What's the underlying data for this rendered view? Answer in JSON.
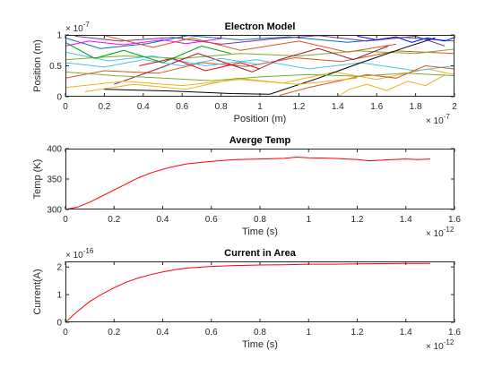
{
  "figure": {
    "background": "#ffffff"
  },
  "chart_data": [
    {
      "type": "line",
      "title": "Electron Model",
      "xlabel": "Position (m)",
      "ylabel": "Position (m)",
      "x_exponent": "× 10",
      "x_exponent_power": "-7",
      "y_exponent": "× 10",
      "y_exponent_power": "-7",
      "xlim": [
        0,
        2e-07
      ],
      "ylim": [
        0,
        1e-07
      ],
      "x_ticks": [
        "0",
        "0.2",
        "0.4",
        "0.6",
        "0.8",
        "1",
        "1.2",
        "1.4",
        "1.6",
        "1.8",
        "2"
      ],
      "y_ticks": [
        "0",
        "0.5",
        "1"
      ],
      "grid": false,
      "series": [
        {
          "color": "#0072bd",
          "points": [
            [
              0.0,
              9.5e-08
            ],
            [
              1.8e-08,
              7.8e-08
            ],
            [
              4.2e-08,
              8.6e-08
            ],
            [
              6.3e-08,
              9.9e-08
            ],
            [
              9e-08,
              9.2e-08
            ],
            [
              1.15e-07,
              9.7e-08
            ],
            [
              1.45e-07,
              8.8e-08
            ],
            [
              1.74e-07,
              9.6e-08
            ],
            [
              2e-07,
              9e-08
            ]
          ]
        },
        {
          "color": "#d95319",
          "points": [
            [
              0.0,
              3e-08
            ],
            [
              2e-08,
              4.2e-08
            ],
            [
              4.8e-08,
              3.8e-08
            ],
            [
              7e-08,
              5.5e-08
            ],
            [
              9.3e-08,
              4.9e-08
            ],
            [
              1.18e-07,
              6.3e-08
            ],
            [
              1.42e-07,
              5.7e-08
            ],
            [
              1.7e-07,
              7.4e-08
            ],
            [
              2e-07,
              7e-08
            ]
          ]
        },
        {
          "color": "#edb120",
          "points": [
            [
              1e-08,
              8e-09
            ],
            [
              3.5e-08,
              2e-08
            ],
            [
              6.2e-08,
              1.2e-08
            ],
            [
              8.8e-08,
              3e-08
            ],
            [
              1.12e-07,
              2.2e-08
            ],
            [
              1.38e-07,
              4e-08
            ],
            [
              1.6e-07,
              2.8e-08
            ],
            [
              1.86e-07,
              4.5e-08
            ],
            [
              2e-07,
              3.6e-08
            ]
          ]
        },
        {
          "color": "#7e2f8e",
          "points": [
            [
              5e-09,
              9.8e-08
            ],
            [
              2.8e-08,
              9e-08
            ],
            [
              5.5e-08,
              9.6e-08
            ],
            [
              8e-08,
              8.5e-08
            ],
            [
              1.05e-07,
              9.3e-08
            ],
            [
              1.3e-07,
              9.9e-08
            ],
            [
              1.55e-07,
              9e-08
            ],
            [
              1.8e-07,
              9.8e-08
            ],
            [
              1.95e-07,
              8.2e-08
            ]
          ]
        },
        {
          "color": "#77ac30",
          "points": [
            [
              0.0,
              6e-08
            ],
            [
              3e-08,
              6.6e-08
            ],
            [
              6e-08,
              6.2e-08
            ],
            [
              9e-08,
              7e-08
            ],
            [
              1.2e-07,
              6.6e-08
            ],
            [
              1.5e-07,
              7.4e-08
            ],
            [
              1.8e-07,
              7e-08
            ],
            [
              2e-07,
              7.7e-08
            ]
          ]
        },
        {
          "color": "#4dbeee",
          "points": [
            [
              0.0,
              7.2e-08
            ],
            [
              2.2e-08,
              5.8e-08
            ],
            [
              4.5e-08,
              6.6e-08
            ],
            [
              7.2e-08,
              5e-08
            ],
            [
              9.8e-08,
              6e-08
            ],
            [
              1.25e-07,
              4.5e-08
            ],
            [
              1.52e-07,
              5.5e-08
            ],
            [
              1.8e-07,
              4.2e-08
            ],
            [
              2e-07,
              5e-08
            ]
          ]
        },
        {
          "color": "#a2142f",
          "points": [
            [
              2.5e-08,
              2e-08
            ],
            [
              5e-08,
              4.8e-08
            ],
            [
              6.8e-08,
              7e-08
            ],
            [
              8.2e-08,
              5.5e-08
            ],
            [
              9.6e-08,
              4e-08
            ],
            [
              1.1e-07,
              6e-08
            ],
            [
              1.3e-07,
              7.8e-08
            ],
            [
              1.48e-07,
              6e-08
            ],
            [
              1.66e-07,
              8.2e-08
            ]
          ]
        },
        {
          "color": "#000000",
          "points": [
            [
              2e-08,
              1.2e-08
            ],
            [
              5.5e-08,
              9e-09
            ],
            [
              8.5e-08,
              5e-09
            ],
            [
              1.05e-07,
              4e-09
            ],
            [
              1.3e-07,
              3e-08
            ],
            [
              1.52e-07,
              5.5e-08
            ],
            [
              1.75e-07,
              8e-08
            ],
            [
              1.9e-07,
              9.5e-08
            ]
          ]
        },
        {
          "color": "#ff00ff",
          "points": [
            [
              0.0,
              8.2e-08
            ],
            [
              1.2e-08,
              9e-08
            ],
            [
              3e-08,
              8.4e-08
            ],
            [
              5e-08,
              9.2e-08
            ],
            [
              6.2e-08,
              8.6e-08
            ],
            [
              8e-08,
              9.4e-08
            ]
          ]
        },
        {
          "color": "#0000ff",
          "points": [
            [
              1.5e-07,
              9.8e-08
            ],
            [
              1.6e-07,
              9.2e-08
            ],
            [
              1.7e-07,
              9.7e-08
            ],
            [
              1.78e-07,
              8.8e-08
            ],
            [
              1.86e-07,
              9.5e-08
            ],
            [
              1.95e-07,
              9e-08
            ],
            [
              2e-07,
              9.6e-08
            ]
          ]
        },
        {
          "color": "#d95319",
          "points": [
            [
              1.1e-07,
              2e-09
            ],
            [
              1.25e-07,
              1.5e-08
            ],
            [
              1.4e-07,
              2.5e-08
            ],
            [
              1.55e-07,
              3.6e-08
            ],
            [
              1.7e-07,
              3e-08
            ],
            [
              1.85e-07,
              5e-08
            ],
            [
              2e-07,
              4.5e-08
            ]
          ]
        },
        {
          "color": "#edb120",
          "points": [
            [
              1.4e-07,
              0.0
            ],
            [
              1.46e-07,
              1.2e-08
            ],
            [
              1.55e-07,
              2e-08
            ],
            [
              1.65e-07,
              1e-08
            ],
            [
              1.76e-07,
              2.5e-08
            ],
            [
              1.85e-07,
              1.8e-08
            ],
            [
              1.95e-07,
              3.5e-08
            ]
          ]
        },
        {
          "color": "#77ac30",
          "points": [
            [
              0.0,
              4e-08
            ],
            [
              2.5e-08,
              3.4e-08
            ],
            [
              5e-08,
              3e-08
            ],
            [
              7.5e-08,
              2.6e-08
            ],
            [
              1e-07,
              3.2e-08
            ],
            [
              1.25e-07,
              3.6e-08
            ],
            [
              1.5e-07,
              3.3e-08
            ],
            [
              1.75e-07,
              3.8e-08
            ],
            [
              2e-07,
              3.4e-08
            ]
          ]
        },
        {
          "color": "#4dbeee",
          "points": [
            [
              0.0,
              5.5e-08
            ],
            [
              2e-08,
              4.8e-08
            ],
            [
              4e-08,
              6e-08
            ],
            [
              6e-08,
              5e-08
            ],
            [
              8e-08,
              6.2e-08
            ],
            [
              1e-07,
              5.2e-08
            ]
          ]
        },
        {
          "color": "#ff0000",
          "points": [
            [
              3.8e-08,
              5e-08
            ],
            [
              5.5e-08,
              6.2e-08
            ],
            [
              7.2e-08,
              4.2e-08
            ],
            [
              9e-08,
              5.5e-08
            ],
            [
              1e-07,
              4.5e-08
            ]
          ]
        },
        {
          "color": "#00a000",
          "points": [
            [
              0.0,
              8.8e-08
            ],
            [
              1.5e-08,
              6.2e-08
            ],
            [
              3e-08,
              7.5e-08
            ],
            [
              5e-08,
              5.5e-08
            ],
            [
              7e-08,
              8.2e-08
            ],
            [
              8.5e-08,
              7e-08
            ]
          ]
        },
        {
          "color": "#d95319",
          "points": [
            [
              2e-08,
              9.9e-08
            ],
            [
              4.5e-08,
              8e-08
            ],
            [
              6.5e-08,
              9.5e-08
            ],
            [
              9e-08,
              7.5e-08
            ],
            [
              1.2e-07,
              9e-08
            ],
            [
              1.45e-07,
              7.2e-08
            ],
            [
              1.7e-07,
              8.5e-08
            ]
          ]
        },
        {
          "color": "#edb120",
          "points": [
            [
              0.0,
              1.5e-08
            ],
            [
              3e-08,
              2.5e-08
            ],
            [
              6e-08,
              1.8e-08
            ],
            [
              9e-08,
              2.8e-08
            ],
            [
              1.2e-07,
              2e-08
            ],
            [
              1.5e-07,
              3e-08
            ]
          ]
        }
      ]
    },
    {
      "type": "line",
      "title": "Averge Temp",
      "xlabel": "Time (s)",
      "ylabel": "Temp (K)",
      "x_exponent": "× 10",
      "x_exponent_power": "-12",
      "xlim": [
        0,
        1.6e-12
      ],
      "ylim": [
        300,
        400
      ],
      "x_ticks": [
        "0",
        "0.2",
        "0.4",
        "0.6",
        "0.8",
        "1",
        "1.2",
        "1.4",
        "1.6"
      ],
      "y_ticks": [
        "300",
        "350",
        "400"
      ],
      "grid": false,
      "series": [
        {
          "color": "#ff0000",
          "points": [
            [
              0,
              300
            ],
            [
              5e-14,
              304
            ],
            [
              1e-13,
              312
            ],
            [
              1.5e-13,
              322
            ],
            [
              2e-13,
              332
            ],
            [
              2.5e-13,
              342
            ],
            [
              3e-13,
              352
            ],
            [
              3.5e-13,
              360
            ],
            [
              4e-13,
              366
            ],
            [
              4.5e-13,
              371
            ],
            [
              5e-13,
              375
            ],
            [
              5.5e-13,
              377
            ],
            [
              6e-13,
              379
            ],
            [
              7e-13,
              382
            ],
            [
              8e-13,
              383
            ],
            [
              9e-13,
              384
            ],
            [
              9.5e-13,
              386
            ],
            [
              1e-12,
              385
            ],
            [
              1.1e-12,
              384
            ],
            [
              1.2e-12,
              382
            ],
            [
              1.25e-12,
              380
            ],
            [
              1.3e-12,
              381
            ],
            [
              1.4e-12,
              383
            ],
            [
              1.45e-12,
              382
            ],
            [
              1.5e-12,
              383
            ]
          ]
        }
      ]
    },
    {
      "type": "line",
      "title": "Current in Area",
      "xlabel": "Time (s)",
      "ylabel": "Current(A)",
      "x_exponent": "× 10",
      "x_exponent_power": "-12",
      "y_exponent": "× 10",
      "y_exponent_power": "-16",
      "xlim": [
        0,
        1.6e-12
      ],
      "ylim": [
        0,
        2.2e-16
      ],
      "x_ticks": [
        "0",
        "0.2",
        "0.4",
        "0.6",
        "0.8",
        "1",
        "1.2",
        "1.4",
        "1.6"
      ],
      "y_ticks": [
        "0",
        "1",
        "2"
      ],
      "grid": false,
      "series": [
        {
          "color": "#ff0000",
          "points": [
            [
              0,
              0
            ],
            [
              5e-14,
              4e-17
            ],
            [
              1e-13,
              7.5e-17
            ],
            [
              1.5e-13,
              1.02e-16
            ],
            [
              2e-13,
              1.25e-16
            ],
            [
              2.5e-13,
              1.45e-16
            ],
            [
              3e-13,
              1.6e-16
            ],
            [
              3.5e-13,
              1.72e-16
            ],
            [
              4e-13,
              1.82e-16
            ],
            [
              4.5e-13,
              1.9e-16
            ],
            [
              5e-13,
              1.96e-16
            ],
            [
              6e-13,
              2.02e-16
            ],
            [
              7e-13,
              2.05e-16
            ],
            [
              8e-13,
              2.07e-16
            ],
            [
              9e-13,
              2.08e-16
            ],
            [
              1e-12,
              2.1e-16
            ],
            [
              1.1e-12,
              2.1e-16
            ],
            [
              1.2e-12,
              2.11e-16
            ],
            [
              1.3e-12,
              2.12e-16
            ],
            [
              1.4e-12,
              2.13e-16
            ],
            [
              1.5e-12,
              2.13e-16
            ]
          ]
        }
      ]
    }
  ]
}
